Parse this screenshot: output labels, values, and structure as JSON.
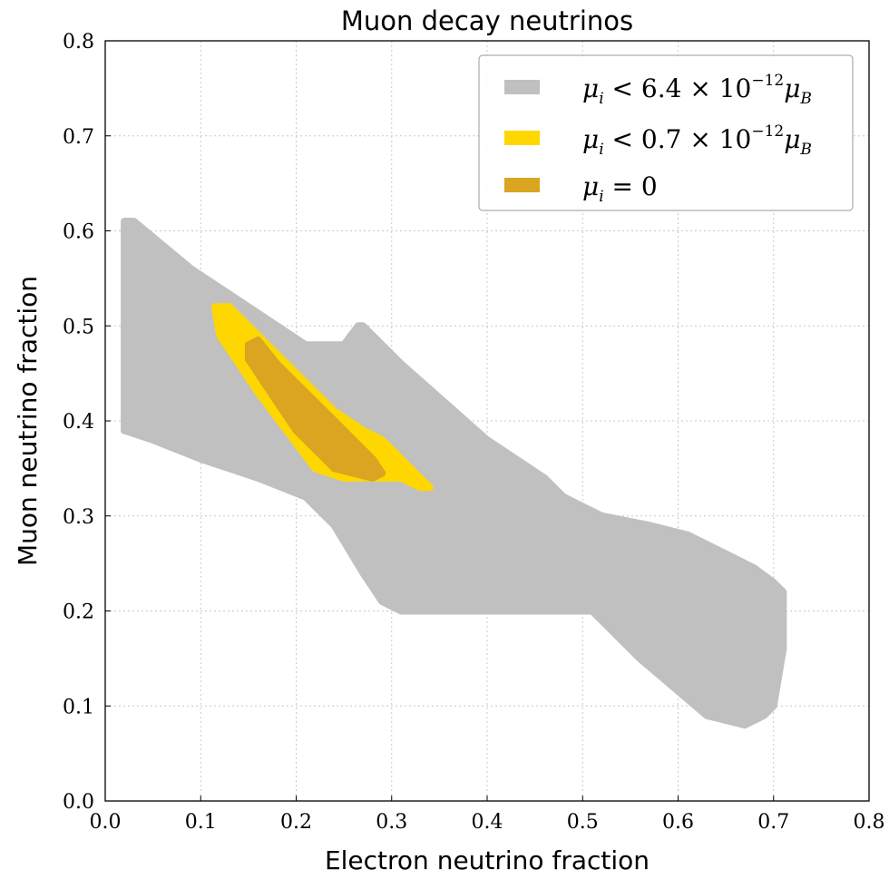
{
  "chart_data": {
    "type": "area",
    "title": "Muon decay neutrinos",
    "xlabel": "Electron neutrino fraction",
    "ylabel": "Muon neutrino fraction",
    "xlim": [
      0.0,
      0.8
    ],
    "ylim": [
      0.0,
      0.8
    ],
    "x_ticks": [
      "0.0",
      "0.1",
      "0.2",
      "0.3",
      "0.4",
      "0.5",
      "0.6",
      "0.7",
      "0.8"
    ],
    "y_ticks": [
      "0.0",
      "0.1",
      "0.2",
      "0.3",
      "0.4",
      "0.5",
      "0.6",
      "0.7",
      "0.8"
    ],
    "grid": true,
    "legend_position": "top-right",
    "series": [
      {
        "label_key": "gray",
        "color": "#c0c0c0",
        "polygon": [
          [
            0.02,
            0.61
          ],
          [
            0.03,
            0.61
          ],
          [
            0.09,
            0.56
          ],
          [
            0.15,
            0.52
          ],
          [
            0.21,
            0.48
          ],
          [
            0.25,
            0.48
          ],
          [
            0.265,
            0.5
          ],
          [
            0.27,
            0.5
          ],
          [
            0.31,
            0.46
          ],
          [
            0.4,
            0.38
          ],
          [
            0.46,
            0.34
          ],
          [
            0.48,
            0.32
          ],
          [
            0.52,
            0.3
          ],
          [
            0.57,
            0.29
          ],
          [
            0.61,
            0.28
          ],
          [
            0.65,
            0.26
          ],
          [
            0.68,
            0.245
          ],
          [
            0.7,
            0.23
          ],
          [
            0.71,
            0.22
          ],
          [
            0.71,
            0.16
          ],
          [
            0.7,
            0.1
          ],
          [
            0.69,
            0.09
          ],
          [
            0.67,
            0.08
          ],
          [
            0.63,
            0.09
          ],
          [
            0.56,
            0.15
          ],
          [
            0.51,
            0.2
          ],
          [
            0.32,
            0.2
          ],
          [
            0.31,
            0.2
          ],
          [
            0.29,
            0.21
          ],
          [
            0.27,
            0.24
          ],
          [
            0.24,
            0.29
          ],
          [
            0.21,
            0.32
          ],
          [
            0.16,
            0.34
          ],
          [
            0.1,
            0.36
          ],
          [
            0.05,
            0.38
          ],
          [
            0.02,
            0.39
          ]
        ]
      },
      {
        "label_key": "yellow",
        "color": "#ffd700",
        "polygon": [
          [
            0.115,
            0.52
          ],
          [
            0.13,
            0.52
          ],
          [
            0.16,
            0.49
          ],
          [
            0.2,
            0.45
          ],
          [
            0.24,
            0.41
          ],
          [
            0.27,
            0.39
          ],
          [
            0.29,
            0.38
          ],
          [
            0.3,
            0.37
          ],
          [
            0.32,
            0.35
          ],
          [
            0.34,
            0.33
          ],
          [
            0.33,
            0.33
          ],
          [
            0.31,
            0.34
          ],
          [
            0.28,
            0.34
          ],
          [
            0.25,
            0.34
          ],
          [
            0.22,
            0.35
          ],
          [
            0.19,
            0.39
          ],
          [
            0.16,
            0.43
          ],
          [
            0.14,
            0.46
          ],
          [
            0.12,
            0.49
          ]
        ]
      },
      {
        "label_key": "orange",
        "color": "#daa520",
        "polygon": [
          [
            0.15,
            0.48
          ],
          [
            0.16,
            0.485
          ],
          [
            0.18,
            0.46
          ],
          [
            0.21,
            0.43
          ],
          [
            0.23,
            0.41
          ],
          [
            0.26,
            0.38
          ],
          [
            0.28,
            0.36
          ],
          [
            0.29,
            0.345
          ],
          [
            0.28,
            0.34
          ],
          [
            0.26,
            0.345
          ],
          [
            0.24,
            0.35
          ],
          [
            0.22,
            0.37
          ],
          [
            0.2,
            0.39
          ],
          [
            0.18,
            0.42
          ],
          [
            0.16,
            0.45
          ],
          [
            0.15,
            0.465
          ]
        ]
      }
    ],
    "legend": {
      "gray": {
        "prefix": "μ",
        "sub": "i",
        "rel": " < 6.4 × 10",
        "exp": "−12",
        "unit": "μ",
        "unit_sub": "B"
      },
      "yellow": {
        "prefix": "μ",
        "sub": "i",
        "rel": " < 0.7 × 10",
        "exp": "−12",
        "unit": "μ",
        "unit_sub": "B"
      },
      "orange": {
        "prefix": "μ",
        "sub": "i",
        "rel": " = 0"
      }
    }
  }
}
